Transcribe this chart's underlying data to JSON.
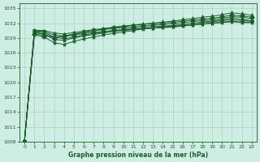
{
  "xlabel": "Graphe pression niveau de la mer (hPa)",
  "background_color": "#ceeee4",
  "grid_color": "#aad4c8",
  "line_color": "#1a5c2a",
  "xlim": [
    -0.5,
    23.5
  ],
  "ylim": [
    1008,
    1036
  ],
  "yticks": [
    1008,
    1011,
    1014,
    1017,
    1020,
    1023,
    1026,
    1029,
    1032,
    1035
  ],
  "xticks": [
    0,
    1,
    2,
    3,
    4,
    5,
    6,
    7,
    8,
    9,
    10,
    11,
    12,
    13,
    14,
    15,
    16,
    17,
    18,
    19,
    20,
    21,
    22,
    23
  ],
  "series": [
    {
      "data": [
        1008.2,
        1029.8,
        1029.5,
        1029.1,
        1029.3,
        1029.6,
        1029.9,
        1030.1,
        1030.3,
        1030.5,
        1030.6,
        1030.8,
        1030.9,
        1031.0,
        1031.2,
        1031.3,
        1031.5,
        1031.6,
        1031.8,
        1032.0,
        1032.1,
        1032.3,
        1032.1,
        1032.1
      ],
      "marker": "*",
      "msize": 3.5
    },
    {
      "data": [
        1008.2,
        1030.1,
        1029.8,
        1028.7,
        1028.5,
        1029.0,
        1029.4,
        1029.7,
        1030.0,
        1030.3,
        1030.5,
        1030.7,
        1030.9,
        1031.0,
        1031.1,
        1031.2,
        1031.4,
        1031.6,
        1031.8,
        1032.0,
        1032.2,
        1032.4,
        1032.2,
        1032.2
      ],
      "marker": "*",
      "msize": 3.5
    },
    {
      "data": [
        1008.2,
        1030.3,
        1030.1,
        1029.2,
        1028.8,
        1029.2,
        1029.6,
        1029.9,
        1030.2,
        1030.5,
        1030.7,
        1031.0,
        1031.2,
        1031.3,
        1031.4,
        1031.5,
        1031.7,
        1031.9,
        1032.1,
        1032.3,
        1032.5,
        1032.7,
        1032.5,
        1032.4
      ],
      "marker": "*",
      "msize": 3.5
    },
    {
      "data": [
        1008.2,
        1029.6,
        1029.2,
        1028.0,
        1027.7,
        1028.3,
        1028.8,
        1029.2,
        1029.6,
        1029.9,
        1030.2,
        1030.5,
        1030.8,
        1031.0,
        1031.2,
        1031.5,
        1031.7,
        1031.9,
        1032.2,
        1032.4,
        1032.7,
        1033.0,
        1032.8,
        1032.5
      ],
      "marker": "*",
      "msize": 3.5
    },
    {
      "data": [
        1008.2,
        1030.4,
        1030.3,
        1029.6,
        1029.4,
        1029.7,
        1030.1,
        1030.4,
        1030.7,
        1030.9,
        1031.1,
        1031.3,
        1031.5,
        1031.6,
        1031.7,
        1031.9,
        1032.1,
        1032.3,
        1032.5,
        1032.7,
        1033.0,
        1033.3,
        1033.2,
        1032.9
      ],
      "marker": "*",
      "msize": 3.5
    },
    {
      "data": [
        1008.2,
        1030.6,
        1030.5,
        1030.0,
        1029.8,
        1030.1,
        1030.4,
        1030.7,
        1030.9,
        1031.2,
        1031.4,
        1031.6,
        1031.8,
        1031.9,
        1032.0,
        1032.2,
        1032.4,
        1032.6,
        1032.8,
        1033.0,
        1033.3,
        1033.6,
        1033.5,
        1033.2
      ],
      "marker": "*",
      "msize": 3.5
    },
    {
      "data": [
        1008.2,
        1030.1,
        1029.7,
        1029.1,
        1029.4,
        1029.8,
        1030.2,
        1030.5,
        1030.8,
        1031.1,
        1031.3,
        1031.6,
        1031.8,
        1032.0,
        1032.2,
        1032.4,
        1032.7,
        1032.9,
        1033.2,
        1033.4,
        1033.7,
        1034.1,
        1033.9,
        1033.6
      ],
      "marker": "^",
      "msize": 4
    }
  ]
}
